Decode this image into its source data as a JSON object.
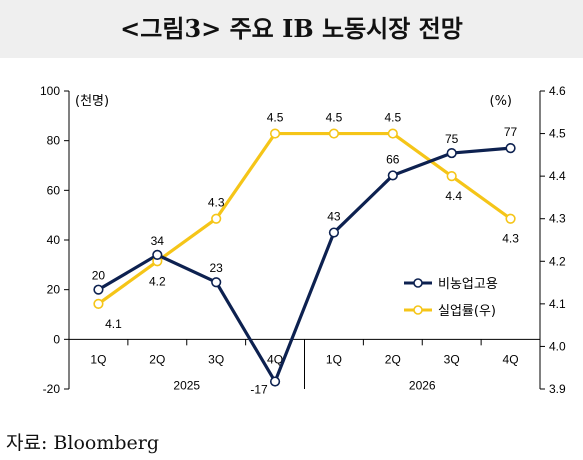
{
  "title": "<그림3> 주요 IB 노동시장 전망",
  "source": "자료: Bloomberg",
  "chart_data": {
    "type": "line",
    "categories": [
      "1Q",
      "2Q",
      "3Q",
      "4Q",
      "1Q",
      "2Q",
      "3Q",
      "4Q"
    ],
    "year_labels": [
      "2025",
      "2026"
    ],
    "left_unit": "(천명)",
    "right_unit": "(%)",
    "y_left_range": [
      -20,
      100
    ],
    "y_left_ticks": [
      "-20",
      "0",
      "20",
      "40",
      "60",
      "80",
      "100"
    ],
    "y_right_range": [
      3.9,
      4.6
    ],
    "y_right_ticks": [
      "3.9",
      "4.0",
      "4.1",
      "4.2",
      "4.3",
      "4.4",
      "4.5",
      "4.6"
    ],
    "grid": false,
    "legend_position": "right",
    "series": [
      {
        "name": "비농업고용",
        "axis": "left",
        "color": "#0d2150",
        "values": [
          20,
          34,
          23,
          -17,
          43,
          66,
          75,
          77
        ],
        "labels": [
          "20",
          "34",
          "23",
          "-17",
          "43",
          "66",
          "75",
          "77"
        ]
      },
      {
        "name": "실업률(우)",
        "axis": "right",
        "color": "#f5c518",
        "values": [
          4.1,
          4.2,
          4.3,
          4.5,
          4.5,
          4.5,
          4.4,
          4.3
        ],
        "labels": [
          "4.1",
          "4.2",
          "4.3",
          "4.5",
          "4.5",
          "4.5",
          "4.4",
          "4.3"
        ]
      }
    ]
  }
}
